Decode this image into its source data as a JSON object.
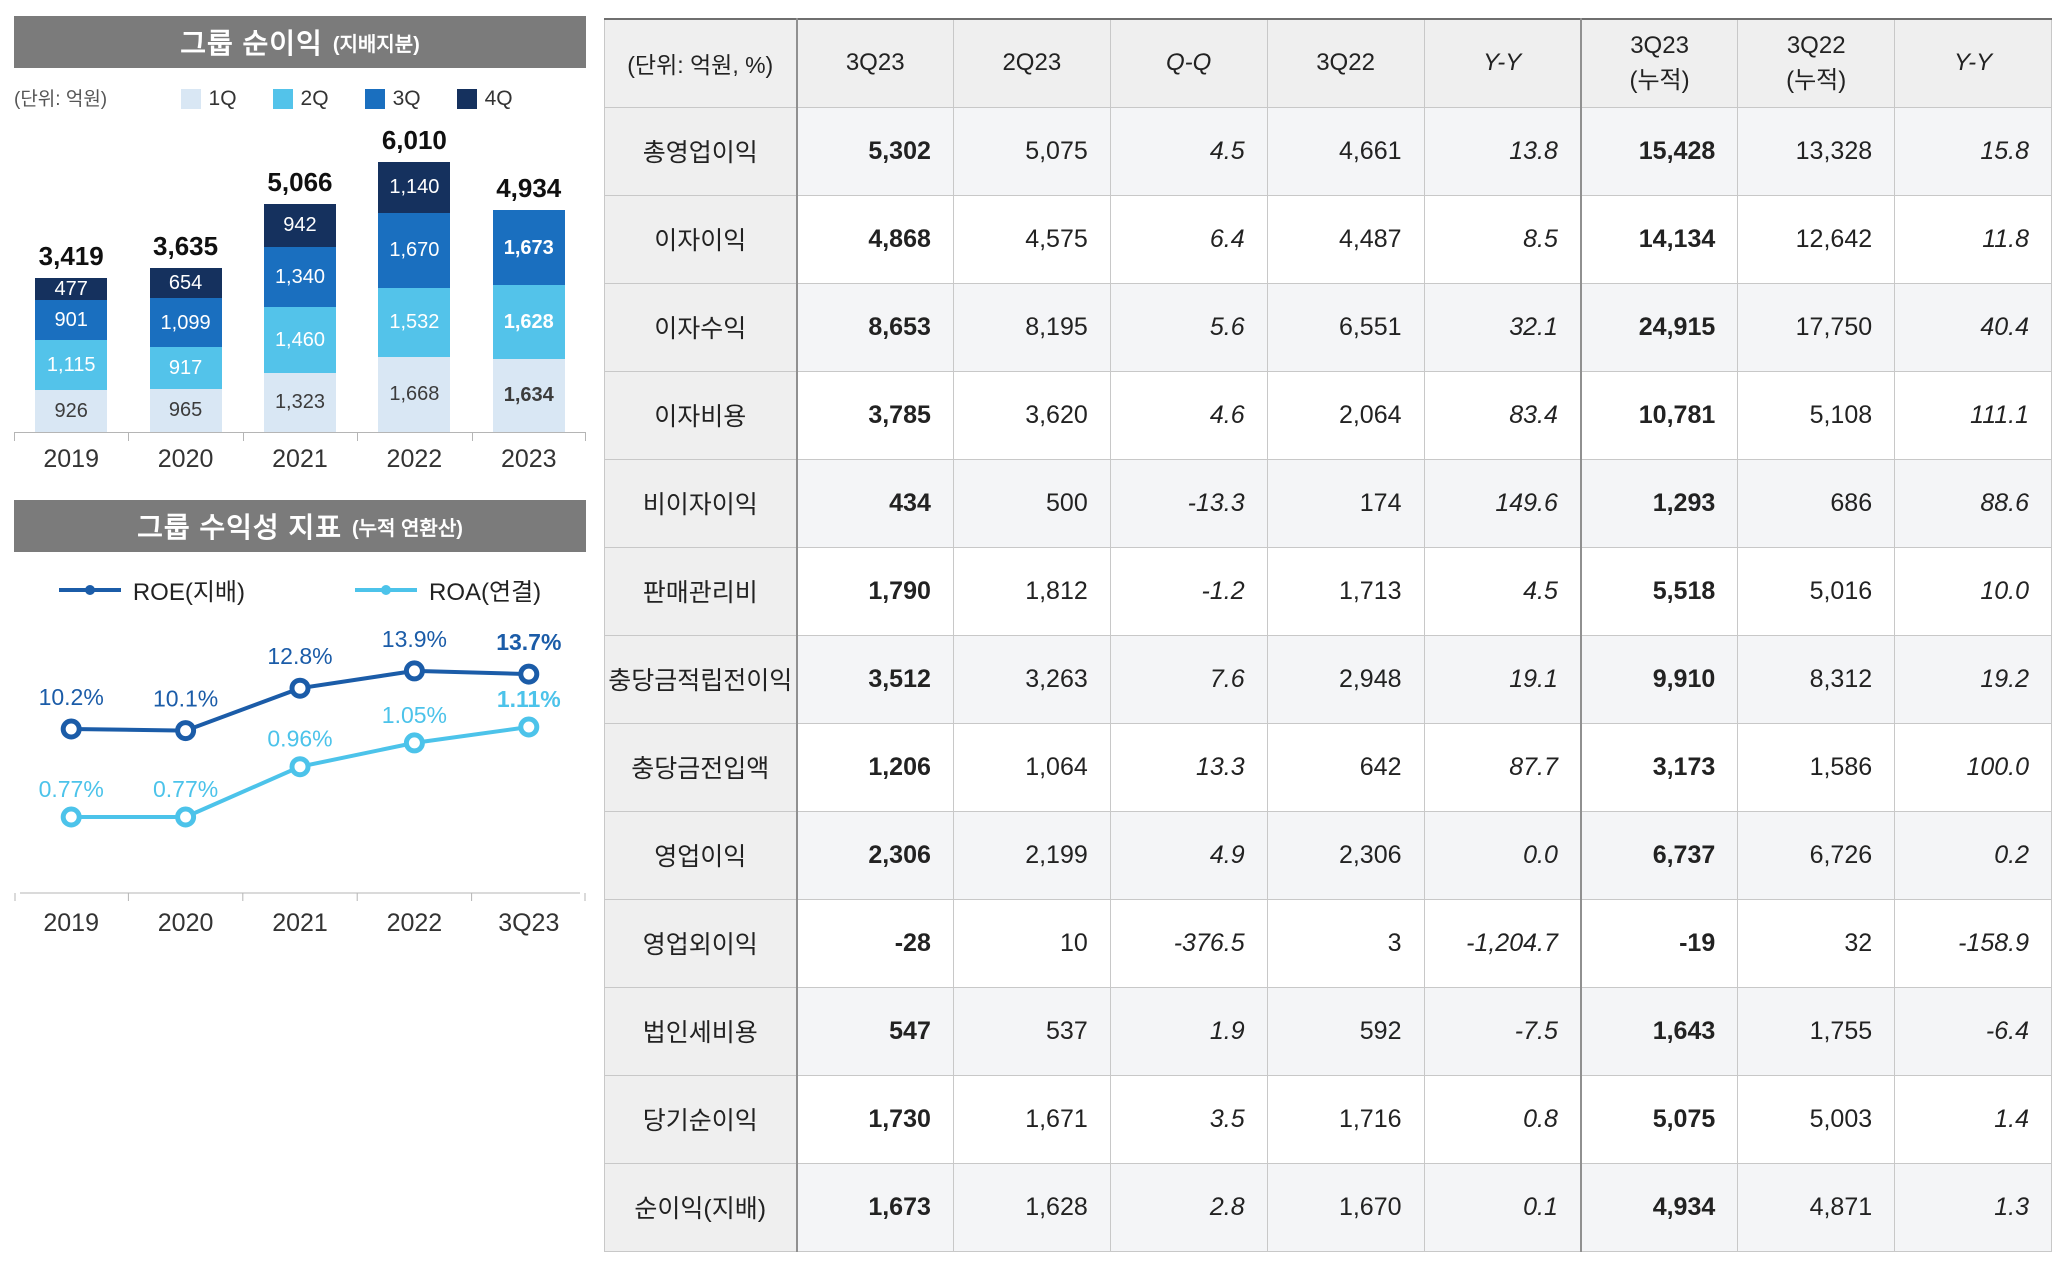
{
  "left": {
    "bar_section": {
      "title": "그룹 순이익",
      "title_sub": "(지배지분)",
      "unit": "(단위: 억원)"
    },
    "line_section": {
      "title": "그룹 수익성 지표",
      "title_sub": "(누적 연환산)"
    }
  },
  "chart_data": [
    {
      "type": "bar",
      "stacked": true,
      "title": "그룹 순이익 (지배지분)",
      "unit": "억원",
      "legend_position": "top",
      "categories": [
        "2019",
        "2020",
        "2021",
        "2022",
        "2023"
      ],
      "series": [
        {
          "name": "1Q",
          "color": "#d9e7f4",
          "values": [
            926,
            965,
            1323,
            1668,
            1634
          ],
          "labels": [
            "926",
            "965",
            "1,323",
            "1,668",
            "1,634"
          ]
        },
        {
          "name": "2Q",
          "color": "#53c3ea",
          "values": [
            1115,
            917,
            1460,
            1532,
            1628
          ],
          "labels": [
            "1,115",
            "917",
            "1,460",
            "1,532",
            "1,628"
          ]
        },
        {
          "name": "3Q",
          "color": "#1a6fbf",
          "values": [
            901,
            1099,
            1340,
            1670,
            1673
          ],
          "labels": [
            "901",
            "1,099",
            "1,340",
            "1,670",
            "1,673"
          ]
        },
        {
          "name": "4Q",
          "color": "#15315e",
          "values": [
            477,
            654,
            942,
            1140,
            null
          ],
          "labels": [
            "477",
            "654",
            "942",
            "1,140",
            null
          ]
        }
      ],
      "totals": [
        3419,
        3635,
        5066,
        6010,
        4934
      ],
      "totals_display": [
        "3,419",
        "3,635",
        "5,066",
        "6,010",
        "4,934"
      ]
    },
    {
      "type": "line",
      "title": "그룹 수익성 지표 (누적 연환산)",
      "categories": [
        "2019",
        "2020",
        "2021",
        "2022",
        "3Q23"
      ],
      "series": [
        {
          "name": "ROE(지배)",
          "color": "#1b5ca8",
          "values": [
            10.2,
            10.1,
            12.8,
            13.9,
            13.7
          ],
          "labels": [
            "10.2%",
            "10.1%",
            "12.8%",
            "13.9%",
            "13.7%"
          ]
        },
        {
          "name": "ROA(연결)",
          "color": "#4cc3ea",
          "values": [
            0.77,
            0.77,
            0.96,
            1.05,
            1.11
          ],
          "labels": [
            "0.77%",
            "0.77%",
            "0.96%",
            "1.05%",
            "1.11%"
          ]
        }
      ]
    }
  ],
  "table": {
    "unit_header": "(단위: 억원, %)",
    "columns": [
      "3Q23",
      "2Q23",
      "Q-Q",
      "3Q22",
      "Y-Y",
      "3Q23\n(누적)",
      "3Q22\n(누적)",
      "Y-Y"
    ],
    "rows": [
      {
        "label": "총영업이익",
        "values": [
          "5,302",
          "5,075",
          "4.5",
          "4,661",
          "13.8",
          "15,428",
          "13,328",
          "15.8"
        ]
      },
      {
        "label": "이자이익",
        "values": [
          "4,868",
          "4,575",
          "6.4",
          "4,487",
          "8.5",
          "14,134",
          "12,642",
          "11.8"
        ]
      },
      {
        "label": "이자수익",
        "values": [
          "8,653",
          "8,195",
          "5.6",
          "6,551",
          "32.1",
          "24,915",
          "17,750",
          "40.4"
        ]
      },
      {
        "label": "이자비용",
        "values": [
          "3,785",
          "3,620",
          "4.6",
          "2,064",
          "83.4",
          "10,781",
          "5,108",
          "111.1"
        ]
      },
      {
        "label": "비이자이익",
        "values": [
          "434",
          "500",
          "-13.3",
          "174",
          "149.6",
          "1,293",
          "686",
          "88.6"
        ]
      },
      {
        "label": "판매관리비",
        "values": [
          "1,790",
          "1,812",
          "-1.2",
          "1,713",
          "4.5",
          "5,518",
          "5,016",
          "10.0"
        ]
      },
      {
        "label": "충당금적립전이익",
        "values": [
          "3,512",
          "3,263",
          "7.6",
          "2,948",
          "19.1",
          "9,910",
          "8,312",
          "19.2"
        ]
      },
      {
        "label": "충당금전입액",
        "values": [
          "1,206",
          "1,064",
          "13.3",
          "642",
          "87.7",
          "3,173",
          "1,586",
          "100.0"
        ]
      },
      {
        "label": "영업이익",
        "values": [
          "2,306",
          "2,199",
          "4.9",
          "2,306",
          "0.0",
          "6,737",
          "6,726",
          "0.2"
        ]
      },
      {
        "label": "영업외이익",
        "values": [
          "-28",
          "10",
          "-376.5",
          "3",
          "-1,204.7",
          "-19",
          "32",
          "-158.9"
        ]
      },
      {
        "label": "법인세비용",
        "values": [
          "547",
          "537",
          "1.9",
          "592",
          "-7.5",
          "1,643",
          "1,755",
          "-6.4"
        ]
      },
      {
        "label": "당기순이익",
        "values": [
          "1,730",
          "1,671",
          "3.5",
          "1,716",
          "0.8",
          "5,075",
          "5,003",
          "1.4"
        ]
      },
      {
        "label": "순이익(지배)",
        "values": [
          "1,673",
          "1,628",
          "2.8",
          "1,670",
          "0.1",
          "4,934",
          "4,871",
          "1.3"
        ]
      }
    ]
  }
}
